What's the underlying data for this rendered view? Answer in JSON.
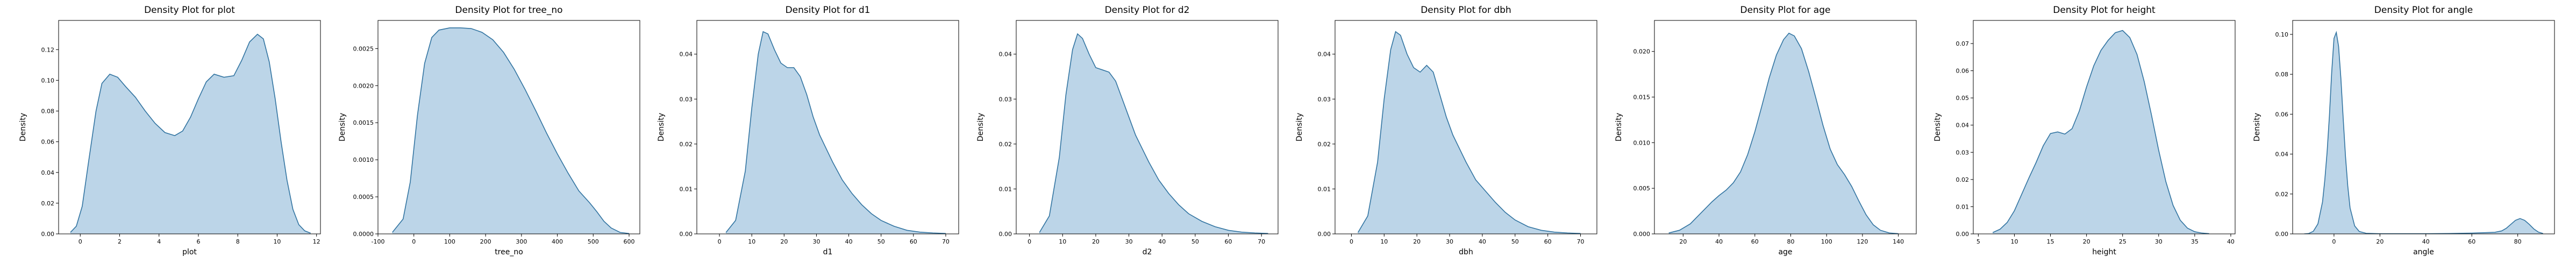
{
  "figure": {
    "colors": {
      "line": "#3274a1",
      "fill": "#a6c7e0",
      "axis": "#000000",
      "background": "#ffffff"
    }
  },
  "chart_data": [
    {
      "type": "area",
      "title": "Density Plot for plot",
      "xlabel": "plot",
      "ylabel": "Density",
      "xlim": [
        -1.1,
        12.2
      ],
      "ylim": [
        0,
        0.139
      ],
      "xticks": [
        0,
        2,
        4,
        6,
        8,
        10,
        12
      ],
      "yticks": [
        0.0,
        0.02,
        0.04,
        0.06,
        0.08,
        0.1,
        0.12
      ],
      "ytick_labels": [
        "0.00",
        "0.02",
        "0.04",
        "0.06",
        "0.08",
        "0.10",
        "0.12"
      ],
      "series": [
        {
          "x": [
            -0.5,
            -0.2,
            0.1,
            0.4,
            0.8,
            1.1,
            1.5,
            1.9,
            2.3,
            2.8,
            3.3,
            3.8,
            4.3,
            4.8,
            5.2,
            5.6,
            6.0,
            6.4,
            6.8,
            7.3,
            7.8,
            8.2,
            8.6,
            9.0,
            9.3,
            9.6,
            9.9,
            10.2,
            10.5,
            10.8,
            11.1,
            11.4,
            11.7
          ],
          "y": [
            0.001,
            0.005,
            0.018,
            0.045,
            0.08,
            0.098,
            0.104,
            0.102,
            0.096,
            0.089,
            0.08,
            0.072,
            0.066,
            0.064,
            0.067,
            0.076,
            0.088,
            0.099,
            0.104,
            0.102,
            0.103,
            0.113,
            0.125,
            0.13,
            0.127,
            0.112,
            0.088,
            0.06,
            0.035,
            0.016,
            0.006,
            0.002,
            0.0005
          ]
        }
      ]
    },
    {
      "type": "area",
      "title": "Density Plot for tree_no",
      "xlabel": "tree_no",
      "ylabel": "Density",
      "xlim": [
        -100,
        630
      ],
      "ylim": [
        0,
        0.00288
      ],
      "xticks": [
        -100,
        0,
        100,
        200,
        300,
        400,
        500,
        600
      ],
      "yticks": [
        0.0,
        0.0005,
        0.001,
        0.0015,
        0.002,
        0.0025
      ],
      "ytick_labels": [
        "0.0000",
        "0.0005",
        "0.0010",
        "0.0015",
        "0.0020",
        "0.0025"
      ],
      "series": [
        {
          "x": [
            -60,
            -30,
            -10,
            10,
            30,
            50,
            70,
            100,
            130,
            160,
            190,
            220,
            250,
            280,
            310,
            340,
            370,
            400,
            430,
            460,
            490,
            510,
            530,
            550,
            575,
            600
          ],
          "y": [
            2e-05,
            0.0002,
            0.0007,
            0.0016,
            0.0023,
            0.00265,
            0.00275,
            0.00278,
            0.00278,
            0.00277,
            0.00272,
            0.00262,
            0.00245,
            0.00222,
            0.00195,
            0.00166,
            0.00136,
            0.00108,
            0.00082,
            0.00058,
            0.00042,
            0.0003,
            0.00017,
            8e-05,
            2e-05,
            5e-06
          ]
        }
      ]
    },
    {
      "type": "area",
      "title": "Density Plot for d1",
      "xlabel": "d1",
      "ylabel": "Density",
      "xlim": [
        -7,
        74
      ],
      "ylim": [
        0,
        0.0475
      ],
      "xticks": [
        0,
        10,
        20,
        30,
        40,
        50,
        60,
        70
      ],
      "yticks": [
        0.0,
        0.01,
        0.02,
        0.03,
        0.04
      ],
      "ytick_labels": [
        "0.00",
        "0.01",
        "0.02",
        "0.03",
        "0.04"
      ],
      "series": [
        {
          "x": [
            2,
            5,
            8,
            10,
            12,
            13.5,
            15,
            17,
            19,
            21,
            23,
            25,
            27,
            29,
            31,
            33,
            35,
            38,
            41,
            44,
            47,
            50,
            54,
            58,
            62,
            66,
            70
          ],
          "y": [
            0.0003,
            0.003,
            0.014,
            0.028,
            0.04,
            0.045,
            0.0445,
            0.041,
            0.038,
            0.037,
            0.037,
            0.035,
            0.031,
            0.026,
            0.022,
            0.019,
            0.016,
            0.012,
            0.009,
            0.0065,
            0.0045,
            0.003,
            0.0017,
            0.0008,
            0.0004,
            0.0002,
            0.0001
          ]
        }
      ]
    },
    {
      "type": "area",
      "title": "Density Plot for d2",
      "xlabel": "d2",
      "ylabel": "Density",
      "xlim": [
        -4,
        75
      ],
      "ylim": [
        0,
        0.0475
      ],
      "xticks": [
        0,
        10,
        20,
        30,
        40,
        50,
        60,
        70
      ],
      "yticks": [
        0.0,
        0.01,
        0.02,
        0.03,
        0.04
      ],
      "ytick_labels": [
        "0.00",
        "0.01",
        "0.02",
        "0.03",
        "0.04"
      ],
      "series": [
        {
          "x": [
            3,
            6,
            9,
            11,
            13,
            14.5,
            16,
            18,
            20,
            22,
            24,
            26,
            28,
            30,
            32,
            34,
            36,
            39,
            42,
            45,
            48,
            52,
            56,
            60,
            64,
            68,
            72
          ],
          "y": [
            0.0003,
            0.004,
            0.017,
            0.031,
            0.041,
            0.0445,
            0.0435,
            0.04,
            0.037,
            0.0365,
            0.036,
            0.034,
            0.03,
            0.026,
            0.022,
            0.019,
            0.016,
            0.012,
            0.009,
            0.0065,
            0.0045,
            0.0028,
            0.0016,
            0.0008,
            0.0004,
            0.0002,
            0.0001
          ]
        }
      ]
    },
    {
      "type": "area",
      "title": "Density Plot for dbh",
      "xlabel": "dbh",
      "ylabel": "Density",
      "xlim": [
        -5,
        75
      ],
      "ylim": [
        0,
        0.0475
      ],
      "xticks": [
        0,
        10,
        20,
        30,
        40,
        50,
        60,
        70
      ],
      "yticks": [
        0.0,
        0.01,
        0.02,
        0.03,
        0.04
      ],
      "ytick_labels": [
        "0.00",
        "0.01",
        "0.02",
        "0.03",
        "0.04"
      ],
      "series": [
        {
          "x": [
            2,
            5,
            8,
            10,
            12,
            13.5,
            15,
            17,
            19,
            21,
            23,
            25,
            27,
            29,
            31,
            33,
            35,
            38,
            41,
            44,
            47,
            50,
            54,
            58,
            62,
            66,
            70
          ],
          "y": [
            0.0003,
            0.004,
            0.016,
            0.03,
            0.041,
            0.045,
            0.0442,
            0.04,
            0.037,
            0.036,
            0.0375,
            0.036,
            0.031,
            0.026,
            0.022,
            0.019,
            0.016,
            0.012,
            0.0095,
            0.007,
            0.0048,
            0.0031,
            0.0016,
            0.0008,
            0.0004,
            0.0002,
            0.0001
          ]
        }
      ]
    },
    {
      "type": "area",
      "title": "Density Plot for age",
      "xlabel": "age",
      "ylabel": "Density",
      "xlim": [
        4,
        150
      ],
      "ylim": [
        0,
        0.0234
      ],
      "xticks": [
        20,
        40,
        60,
        80,
        100,
        120,
        140
      ],
      "yticks": [
        0.0,
        0.005,
        0.01,
        0.015,
        0.02
      ],
      "ytick_labels": [
        "0.000",
        "0.005",
        "0.010",
        "0.015",
        "0.020"
      ],
      "series": [
        {
          "x": [
            12,
            18,
            24,
            30,
            36,
            40,
            44,
            48,
            52,
            56,
            60,
            64,
            68,
            72,
            76,
            79,
            82,
            86,
            90,
            94,
            98,
            102,
            106,
            110,
            114,
            118,
            122,
            126,
            130,
            135,
            140
          ],
          "y": [
            0.0001,
            0.0004,
            0.0011,
            0.0023,
            0.0035,
            0.0042,
            0.0048,
            0.0056,
            0.0068,
            0.0087,
            0.0112,
            0.0141,
            0.0171,
            0.0196,
            0.0213,
            0.022,
            0.0217,
            0.0203,
            0.0178,
            0.0149,
            0.0119,
            0.0093,
            0.0076,
            0.0065,
            0.0052,
            0.0036,
            0.0021,
            0.001,
            0.0004,
            0.0001,
            3e-05
          ]
        }
      ]
    },
    {
      "type": "area",
      "title": "Density Plot for height",
      "xlabel": "height",
      "ylabel": "Density",
      "xlim": [
        4.3,
        40.6
      ],
      "ylim": [
        0,
        0.0785
      ],
      "xticks": [
        5,
        10,
        15,
        20,
        25,
        30,
        35,
        40
      ],
      "yticks": [
        0.0,
        0.01,
        0.02,
        0.03,
        0.04,
        0.05,
        0.06,
        0.07
      ],
      "ytick_labels": [
        "0.00",
        "0.01",
        "0.02",
        "0.03",
        "0.04",
        "0.05",
        "0.06",
        "0.07"
      ],
      "series": [
        {
          "x": [
            7,
            8,
            9,
            10,
            11,
            12,
            13,
            14,
            15,
            16,
            17,
            18,
            19,
            20,
            21,
            22,
            23,
            24,
            25,
            26,
            27,
            28,
            29,
            30,
            31,
            32,
            33,
            34,
            35,
            36,
            37
          ],
          "y": [
            0.0005,
            0.0017,
            0.0042,
            0.0085,
            0.0145,
            0.0205,
            0.0262,
            0.0324,
            0.0369,
            0.0375,
            0.0367,
            0.0387,
            0.0452,
            0.054,
            0.0618,
            0.0675,
            0.0712,
            0.074,
            0.0748,
            0.0722,
            0.066,
            0.056,
            0.0438,
            0.0308,
            0.0192,
            0.0105,
            0.005,
            0.0021,
            0.0008,
            0.0003,
            0.0001
          ]
        }
      ]
    },
    {
      "type": "area",
      "title": "Density Plot for angle",
      "xlabel": "angle",
      "ylabel": "Density",
      "xlim": [
        -18,
        96
      ],
      "ylim": [
        0,
        0.107
      ],
      "xticks": [
        0,
        20,
        40,
        60,
        80
      ],
      "yticks": [
        0.0,
        0.02,
        0.04,
        0.06,
        0.08,
        0.1
      ],
      "ytick_labels": [
        "0.00",
        "0.02",
        "0.04",
        "0.06",
        "0.08",
        "0.10"
      ],
      "series": [
        {
          "x": [
            -13,
            -11,
            -9,
            -7,
            -5,
            -4,
            -3,
            -2,
            -1,
            0,
            1,
            2,
            3,
            4,
            5,
            6,
            7,
            9,
            11,
            14,
            20,
            30,
            40,
            50,
            60,
            70,
            73,
            75,
            77,
            79,
            81,
            83,
            85,
            87,
            89,
            91
          ],
          "y": [
            0.0,
            0.0002,
            0.0013,
            0.005,
            0.016,
            0.027,
            0.041,
            0.059,
            0.081,
            0.098,
            0.101,
            0.094,
            0.078,
            0.058,
            0.039,
            0.024,
            0.013,
            0.004,
            0.0012,
            0.0003,
            0.0001,
            0.0001,
            0.0001,
            0.0002,
            0.0004,
            0.0008,
            0.0015,
            0.0028,
            0.0048,
            0.0068,
            0.0077,
            0.0068,
            0.0048,
            0.0025,
            0.0009,
            0.0002
          ]
        }
      ]
    }
  ]
}
